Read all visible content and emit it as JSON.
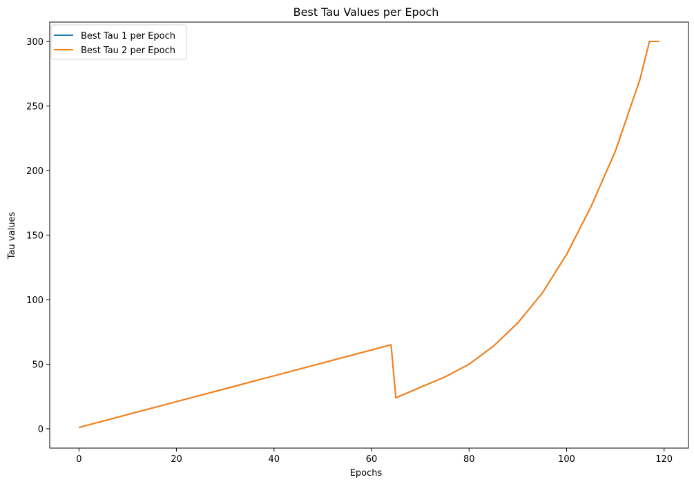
{
  "chart_data": {
    "type": "line",
    "title": "Best Tau Values per Epoch",
    "xlabel": "Epochs",
    "ylabel": "Tau values",
    "xlim": [
      -6,
      125
    ],
    "ylim": [
      -15,
      315
    ],
    "xticks": [
      0,
      20,
      40,
      60,
      80,
      100,
      120
    ],
    "yticks": [
      0,
      50,
      100,
      150,
      200,
      250,
      300
    ],
    "grid": false,
    "legend_position": "upper-left",
    "series": [
      {
        "name": "Best Tau 1 per Epoch",
        "color": "#1f77b4",
        "x": [
          0,
          10,
          20,
          30,
          40,
          50,
          60,
          64,
          65,
          70,
          75,
          80,
          85,
          90,
          95,
          100,
          105,
          110,
          115,
          117,
          119
        ],
        "y": [
          1,
          11,
          21,
          31,
          41,
          51,
          61,
          65,
          24,
          32,
          40,
          50,
          64,
          82,
          105,
          135,
          172,
          215,
          270,
          300,
          300
        ]
      },
      {
        "name": "Best Tau 2 per Epoch",
        "color": "#ff7f0e",
        "x": [
          0,
          10,
          20,
          30,
          40,
          50,
          60,
          64,
          65,
          70,
          75,
          80,
          85,
          90,
          95,
          100,
          105,
          110,
          115,
          117,
          119
        ],
        "y": [
          1,
          11,
          21,
          31,
          41,
          51,
          61,
          65,
          24,
          32,
          40,
          50,
          64,
          82,
          105,
          135,
          172,
          215,
          270,
          300,
          300
        ]
      }
    ]
  }
}
